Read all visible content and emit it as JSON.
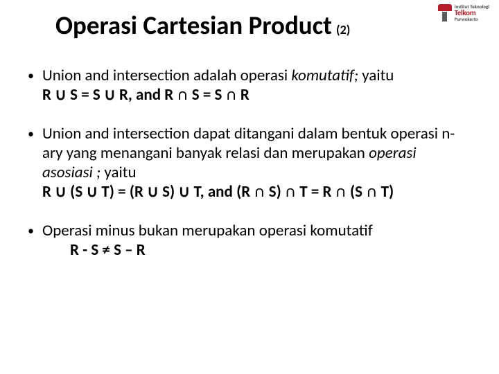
{
  "title": {
    "main": "Operasi Cartesian Product",
    "sub": "(2)"
  },
  "logo": {
    "line1": "Institut Teknologi",
    "line2": "Telkom",
    "line3": "Purwokerto"
  },
  "bullets": [
    {
      "lead": "Union and intersection adalah operasi ",
      "italic": "komutatif;",
      "tail": " yaitu",
      "eq": "R ∪ S = S ∪ R, and R ∩ S = S ∩ R",
      "eq_indent": false
    },
    {
      "lead": "Union and intersection dapat ditangani dalam bentuk operasi n-ary yang menangani banyak relasi dan merupakan ",
      "italic": "operasi asosiasi ;",
      "tail": " yaitu",
      "eq": "R ∪ (S ∪ T) = (R ∪ S) ∪ T, and (R ∩ S) ∩ T = R ∩ (S ∩ T)",
      "eq_indent": false
    },
    {
      "lead": "Operasi minus bukan merupakan operasi komutatif",
      "italic": "",
      "tail": "",
      "eq": "R - S ≠ S – R",
      "eq_indent": true
    }
  ],
  "colors": {
    "text": "#000000",
    "background": "#ffffff",
    "logo_red": "#b61f2a",
    "logo_gray": "#5a5a5a"
  }
}
